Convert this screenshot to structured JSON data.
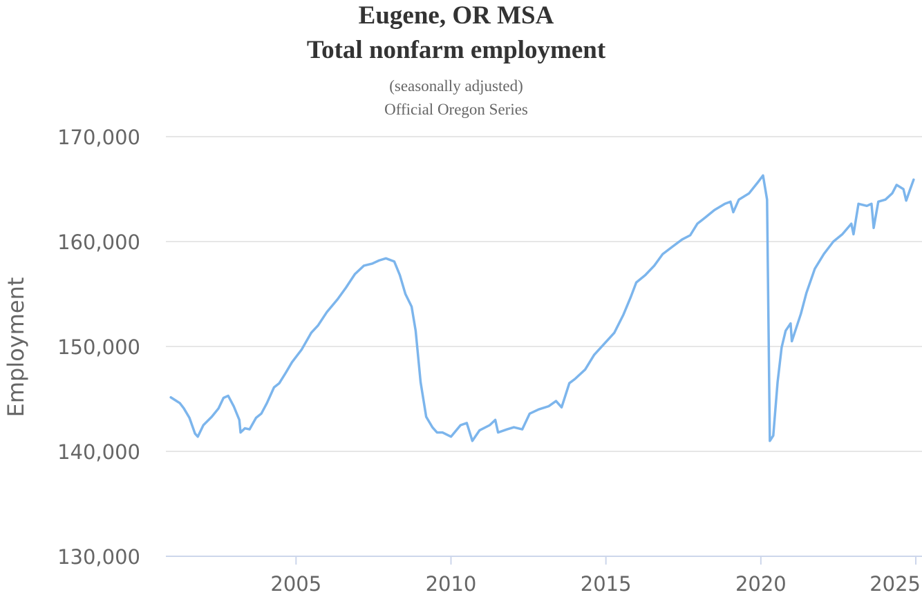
{
  "chart_data": {
    "type": "line",
    "title": [
      "Eugene, OR MSA",
      "Total nonfarm employment"
    ],
    "subtitle": [
      "(seasonally adjusted)",
      "Official Oregon Series"
    ],
    "y_label": "Employment",
    "xlim": [
      2000.8,
      2025.2
    ],
    "xticks": [
      2005,
      2010,
      2015,
      2020,
      2025
    ],
    "ylim": [
      130000,
      170000
    ],
    "yticks": [
      {
        "value": 130000,
        "label": "130,000"
      },
      {
        "value": 140000,
        "label": "140,000"
      },
      {
        "value": 150000,
        "label": "150,000"
      },
      {
        "value": 160000,
        "label": "160,000"
      },
      {
        "value": 170000,
        "label": "170,000"
      }
    ],
    "grid": true,
    "series": [
      {
        "name": "Total nonfarm employment",
        "color": "#7cb5ec",
        "x": [
          2000.96,
          2001.25,
          2001.38,
          2001.56,
          2001.74,
          2001.83,
          2002.01,
          2002.28,
          2002.5,
          2002.66,
          2002.81,
          2002.99,
          2003.17,
          2003.21,
          2003.35,
          2003.5,
          2003.71,
          2003.88,
          2004.06,
          2004.29,
          2004.46,
          2004.67,
          2004.87,
          2005.18,
          2005.49,
          2005.71,
          2006.0,
          2006.34,
          2006.61,
          2006.9,
          2007.19,
          2007.46,
          2007.68,
          2007.9,
          2008.17,
          2008.35,
          2008.53,
          2008.73,
          2008.86,
          2009.02,
          2009.2,
          2009.4,
          2009.55,
          2009.73,
          2010.0,
          2010.31,
          2010.51,
          2010.69,
          2010.92,
          2011.25,
          2011.43,
          2011.52,
          2011.81,
          2012.03,
          2012.3,
          2012.54,
          2012.83,
          2013.15,
          2013.39,
          2013.57,
          2013.82,
          2014.0,
          2014.33,
          2014.62,
          2014.93,
          2015.27,
          2015.56,
          2015.8,
          2015.98,
          2016.27,
          2016.56,
          2016.83,
          2017.14,
          2017.46,
          2017.72,
          2017.95,
          2018.21,
          2018.5,
          2018.84,
          2019.02,
          2019.11,
          2019.29,
          2019.62,
          2019.89,
          2020.07,
          2020.2,
          2020.29,
          2020.4,
          2020.54,
          2020.67,
          2020.8,
          2020.96,
          2021.0,
          2021.29,
          2021.47,
          2021.74,
          2022.03,
          2022.34,
          2022.63,
          2022.92,
          2022.99,
          2023.15,
          2023.42,
          2023.57,
          2023.64,
          2023.79,
          2024.02,
          2024.24,
          2024.38,
          2024.6,
          2024.69,
          2024.82,
          2024.93
        ],
        "values": [
          145150,
          144600,
          144100,
          143200,
          141700,
          141400,
          142500,
          143300,
          144100,
          145100,
          145300,
          144300,
          143000,
          141800,
          142200,
          142100,
          143200,
          143600,
          144600,
          146100,
          146500,
          147500,
          148500,
          149700,
          151300,
          152000,
          153300,
          154500,
          155600,
          156900,
          157700,
          157900,
          158200,
          158400,
          158100,
          156800,
          155000,
          153800,
          151500,
          146600,
          143300,
          142300,
          141800,
          141800,
          141400,
          142500,
          142700,
          141000,
          142000,
          142500,
          143000,
          141800,
          142100,
          142300,
          142100,
          143600,
          144000,
          144300,
          144800,
          144200,
          146500,
          146900,
          147800,
          149200,
          150200,
          151300,
          153000,
          154700,
          156100,
          156800,
          157700,
          158800,
          159500,
          160200,
          160600,
          161700,
          162300,
          163000,
          163600,
          163800,
          162800,
          164000,
          164600,
          165600,
          166300,
          164000,
          141000,
          141500,
          146600,
          149900,
          151500,
          152200,
          150500,
          153100,
          155100,
          157400,
          158800,
          160000,
          160700,
          161700,
          160700,
          163600,
          163400,
          163600,
          161300,
          163800,
          164000,
          164600,
          165400,
          165000,
          163900,
          165000,
          165900
        ]
      }
    ]
  }
}
